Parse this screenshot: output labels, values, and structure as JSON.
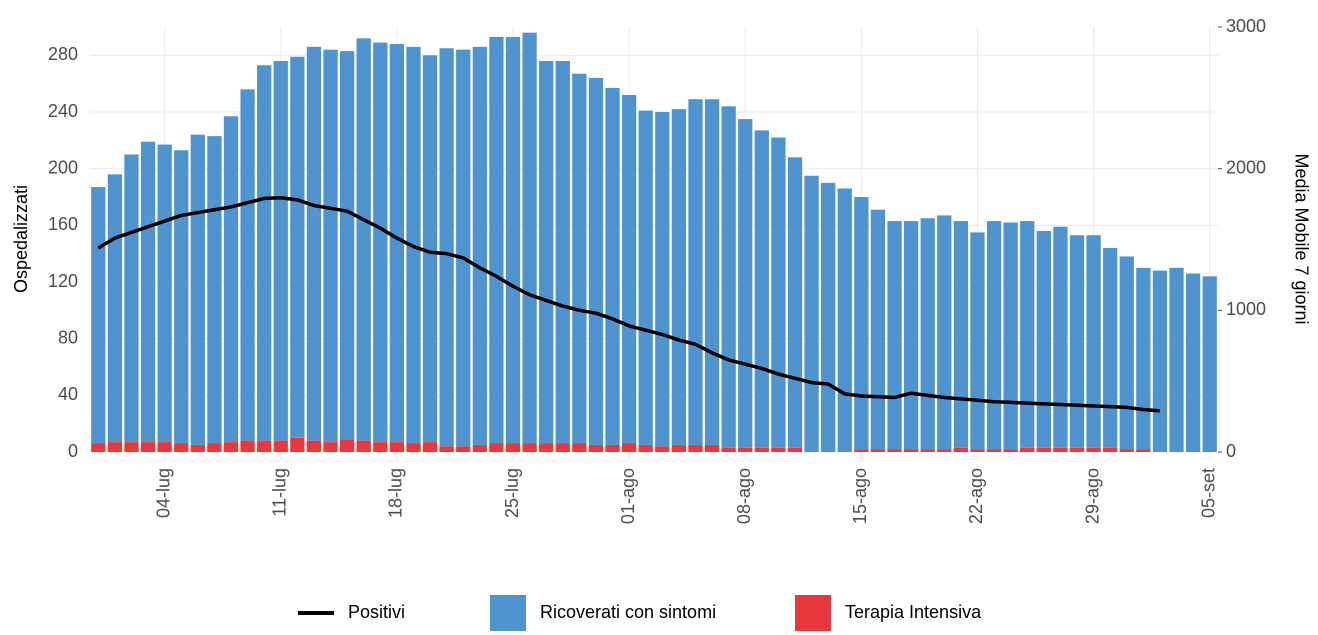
{
  "chart_data": {
    "type": "bar",
    "stacked": true,
    "grid": true,
    "ylabel": "Ospedalizzati",
    "y2label": "Media Mobile 7 giorni",
    "categories": [
      null,
      null,
      null,
      null,
      "04-lug",
      null,
      null,
      null,
      null,
      null,
      null,
      "11-lug",
      null,
      null,
      null,
      null,
      null,
      null,
      "18-lug",
      null,
      null,
      null,
      null,
      null,
      null,
      "25-lug",
      null,
      null,
      null,
      null,
      null,
      null,
      "01-ago",
      null,
      null,
      null,
      null,
      null,
      null,
      "08-ago",
      null,
      null,
      null,
      null,
      null,
      null,
      "15-ago",
      null,
      null,
      null,
      null,
      null,
      null,
      "22-ago",
      null,
      null,
      null,
      null,
      null,
      null,
      "29-ago",
      null,
      null,
      null,
      null,
      null,
      null,
      "05-set"
    ],
    "ylim": [
      0,
      300
    ],
    "yticks": [
      0,
      40,
      80,
      120,
      160,
      200,
      240,
      280
    ],
    "y2lim": [
      0,
      3000
    ],
    "y2ticks": [
      0,
      1000,
      2000,
      3000
    ],
    "series": [
      {
        "name": "Positivi",
        "type": "line",
        "axis": "y2",
        "color": "#000000",
        "values": [
          1440,
          1510,
          1550,
          1590,
          1630,
          1670,
          1690,
          1710,
          1730,
          1760,
          1790,
          1795,
          1780,
          1740,
          1720,
          1700,
          1640,
          1580,
          1510,
          1450,
          1410,
          1400,
          1370,
          1300,
          1240,
          1170,
          1110,
          1070,
          1030,
          1000,
          980,
          940,
          890,
          860,
          830,
          790,
          760,
          700,
          650,
          620,
          590,
          550,
          520,
          490,
          480,
          410,
          395,
          390,
          385,
          415,
          400,
          385,
          375,
          365,
          355,
          350,
          345,
          340,
          335,
          330,
          325,
          320,
          315,
          300,
          290,
          null,
          null,
          null
        ]
      },
      {
        "name": "Terapia Intensiva",
        "color": "#e8383d",
        "values": [
          6,
          7,
          7,
          7,
          7,
          6,
          5,
          6,
          7,
          8,
          8,
          8,
          10,
          8,
          7,
          9,
          8,
          7,
          7,
          6,
          7,
          4,
          4,
          5,
          6,
          6,
          6,
          6,
          6,
          6,
          5,
          5,
          6,
          5,
          4,
          5,
          5,
          5,
          3,
          3,
          3,
          3,
          3,
          0,
          0,
          0,
          2,
          2,
          2,
          2,
          2,
          2,
          3,
          2,
          2,
          2,
          3,
          3,
          3,
          3,
          3,
          3,
          2,
          2,
          0,
          0,
          0,
          0
        ]
      },
      {
        "name": "Ricoverati con sintomi",
        "color": "#4f93cf",
        "values": [
          181,
          189,
          203,
          212,
          210,
          207,
          219,
          217,
          230,
          248,
          265,
          268,
          269,
          278,
          277,
          274,
          284,
          282,
          281,
          280,
          273,
          281,
          280,
          281,
          287,
          287,
          290,
          270,
          270,
          261,
          259,
          252,
          246,
          236,
          236,
          237,
          244,
          244,
          241,
          232,
          224,
          219,
          205,
          195,
          190,
          186,
          178,
          169,
          161,
          161,
          163,
          165,
          160,
          153,
          161,
          160,
          160,
          153,
          156,
          150,
          150,
          141,
          136,
          128,
          128,
          130,
          126,
          124
        ]
      }
    ]
  }
}
